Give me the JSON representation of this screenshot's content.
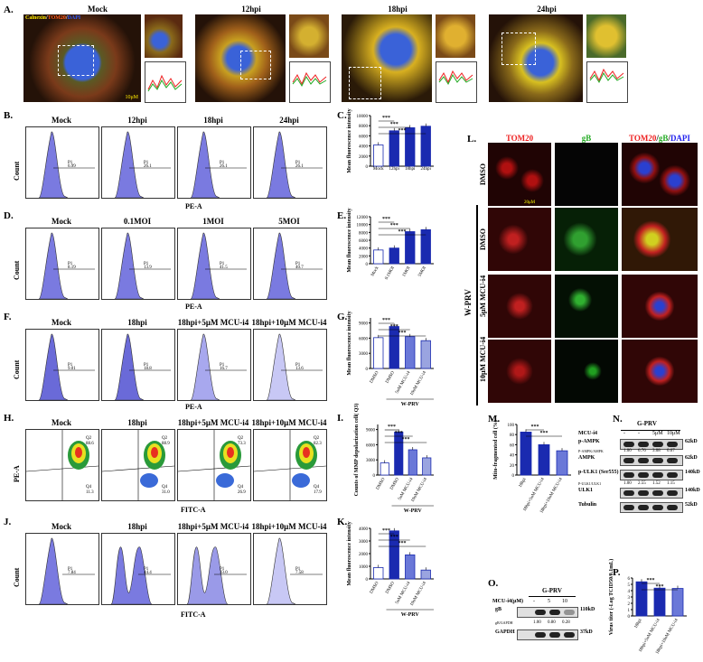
{
  "panelA": {
    "label": "A.",
    "titles": [
      "Mock",
      "12hpi",
      "18hpi",
      "24hpi"
    ],
    "legend_calnexin": "Calnexin",
    "legend_tom20": "TOM20",
    "legend_dapi": "DAPI",
    "scale": "10μM",
    "colors": {
      "calnexin": "#ffea00",
      "tom20": "#ff5a1a",
      "dapi": "#2a5bff"
    }
  },
  "panelB": {
    "label": "B.",
    "titles": [
      "Mock",
      "12hpi",
      "18hpi",
      "24hpi"
    ],
    "xlabel": "PE-A",
    "ylabel": "Count",
    "gate": "P1",
    "gate_values": [
      "6.99",
      "26.1",
      "26.1",
      "26.1"
    ]
  },
  "panelC": {
    "label": "C.",
    "ylabel": "Mean fluorescence intensity",
    "chart_data": {
      "type": "bar",
      "categories": [
        "Mock",
        "12hpi",
        "18hpi",
        "24hpi"
      ],
      "values": [
        4200,
        7000,
        7600,
        7900
      ],
      "ylim": [
        0,
        10000
      ],
      "yticks": [
        "0",
        "2000",
        "4000",
        "6000",
        "8000",
        "10000"
      ],
      "sig": [
        "***",
        "***",
        "***"
      ]
    }
  },
  "panelD": {
    "label": "D.",
    "titles": [
      "Mock",
      "0.1MOI",
      "1MOI",
      "5MOI"
    ],
    "xlabel": "PE-A",
    "ylabel": "Count",
    "gate": "P1",
    "gate_values": [
      "8.19",
      "13.9",
      "41.5",
      "40.7"
    ]
  },
  "panelE": {
    "label": "E.",
    "ylabel": "Mean fluorescence intensity",
    "chart_data": {
      "type": "bar",
      "categories": [
        "Mock",
        "0.1MOI",
        "1MOI",
        "5MOI"
      ],
      "values": [
        3500,
        4000,
        8200,
        8700
      ],
      "ylim": [
        0,
        12000
      ],
      "yticks": [
        "0",
        "2000",
        "4000",
        "6000",
        "8000",
        "10000",
        "12000"
      ],
      "sig": [
        "***",
        "***",
        "***"
      ]
    }
  },
  "panelF": {
    "label": "F.",
    "titles": [
      "Mock",
      "18hpi",
      "18hpi+5μM MCU-i4",
      "18hpi+10μM MCU-i4"
    ],
    "xlabel": "PE-A",
    "ylabel": "Count",
    "gate": "P1",
    "gate_values": [
      "9.01",
      "18.8",
      "16.7",
      "13.6"
    ]
  },
  "panelG": {
    "label": "G.",
    "ylabel": "Mean fluorescence intensity",
    "group": "W-PRV",
    "chart_data": {
      "type": "bar",
      "categories": [
        "DMSO",
        "DMSO",
        "5uM MCU-i4",
        "10uM MCU-i4"
      ],
      "values": [
        6100,
        8300,
        6300,
        5500
      ],
      "ylim": [
        0,
        10000
      ],
      "yticks": [
        "0",
        "3000",
        "6000",
        "9000"
      ],
      "sig": [
        "***",
        "***",
        "***"
      ]
    }
  },
  "panelH": {
    "label": "H.",
    "titles": [
      "Mock",
      "18hpi",
      "18hpi+5μM MCU-i4",
      "18hpi+10μM MCU-i4"
    ],
    "xlabel": "FITC-A",
    "ylabel": "PE-A",
    "q2": [
      "88.6",
      "88.9",
      "73.3",
      "82.3"
    ],
    "q4": [
      "11.3",
      "31.0",
      "26.9",
      "17.9"
    ]
  },
  "panelI": {
    "label": "I.",
    "ylabel": "Counts of MMP depolarization cell( Q3)",
    "group": "W-PRV",
    "chart_data": {
      "type": "bar",
      "categories": [
        "DMSO",
        "DMSO",
        "5uM MCU-i4",
        "10uM MCU-i4"
      ],
      "values": [
        2400,
        8500,
        5000,
        3400
      ],
      "ylim": [
        0,
        10000
      ],
      "yticks": [
        "0",
        "3000",
        "6000",
        "9000"
      ],
      "sig": [
        "***",
        "***",
        "***"
      ]
    }
  },
  "panelJ": {
    "label": "J.",
    "titles": [
      "Mock",
      "18hpi",
      "18hpi+5μM MCU-i4",
      "18hpi+10μM MCU-i4"
    ],
    "xlabel": "FITC-A",
    "ylabel": "Count",
    "gate": "P1",
    "gate_values": [
      "7.84",
      "44.4",
      "33.0",
      "7.58"
    ]
  },
  "panelK": {
    "label": "K.",
    "ylabel": "Mean fluorescence intensity",
    "group": "W-PRV",
    "chart_data": {
      "type": "bar",
      "categories": [
        "DMSO",
        "DMSO",
        "5uM MCU-i4",
        "10uM MCU-i4"
      ],
      "values": [
        900,
        3800,
        1900,
        700
      ],
      "ylim": [
        0,
        4000
      ],
      "yticks": [
        "0",
        "1000",
        "2000",
        "3000",
        "4000"
      ],
      "sig": [
        "***",
        "***",
        "***"
      ]
    }
  },
  "panelL": {
    "label": "L.",
    "cols": [
      "TOM20",
      "gB",
      "TOM20/gB/DAPI"
    ],
    "rows": [
      "DMSO",
      "DMSO",
      "5μM MCU-i4",
      "10μM MCU-i4"
    ],
    "group": "W-PRV",
    "scale": "20μM"
  },
  "panelM": {
    "label": "M.",
    "ylabel": "Mito-fragmented cell (%)",
    "chart_data": {
      "type": "bar",
      "categories": [
        "18hpi",
        "18hpi+5uM MCU-i4",
        "18hpi+10uM MCU-i4"
      ],
      "values": [
        85,
        60,
        48
      ],
      "ylim": [
        0,
        100
      ],
      "yticks": [
        "0",
        "20",
        "40",
        "60",
        "80",
        "100"
      ],
      "sig": [
        "***",
        "***"
      ]
    }
  },
  "panelN": {
    "label": "N.",
    "header_group": "G-PRV",
    "row_mcu": "MCU-i4",
    "lanes": [
      "-",
      "-",
      "5μM",
      "10μM"
    ],
    "bands": [
      "p-AMPK",
      "AMPK",
      "p-ULK1 (Ser555)",
      "ULK1",
      "Tubulin"
    ],
    "kd": [
      "62kD",
      "62kD",
      "140kD",
      "140kD",
      "52kD"
    ],
    "ratio1_label": "P-AMPK/AMPK",
    "ratio1": [
      "1.00",
      "6.76",
      "3.08",
      "0.67"
    ],
    "ratio2_label": "P-ULK1/ULK1",
    "ratio2": [
      "1.00",
      "2.55",
      "1.52",
      "1.15"
    ]
  },
  "panelO": {
    "label": "O.",
    "header_group": "G-PRV",
    "row_mcu": "MCU-i4(μM)",
    "lanes": [
      "-",
      "-",
      "5",
      "10"
    ],
    "bands": [
      "gB",
      "GAPDH"
    ],
    "kd": [
      "110kD",
      "37kD"
    ],
    "ratio_label": "gB/GAPDH",
    "ratio": [
      "1.00",
      "0.80",
      "0.28"
    ]
  },
  "panelP": {
    "label": "P.",
    "ylabel": "Virus titer (-Log TCID50/0.1mL)",
    "chart_data": {
      "type": "bar",
      "categories": [
        "18hpi",
        "18hpi+5uM MCU-i4",
        "18hpi+10uM MCU-i4"
      ],
      "values": [
        5.4,
        4.4,
        4.35
      ],
      "ylim": [
        0,
        6
      ],
      "yticks": [
        "0",
        "1",
        "2",
        "3",
        "4",
        "5",
        "6"
      ],
      "sig": [
        "***",
        "***"
      ]
    }
  }
}
